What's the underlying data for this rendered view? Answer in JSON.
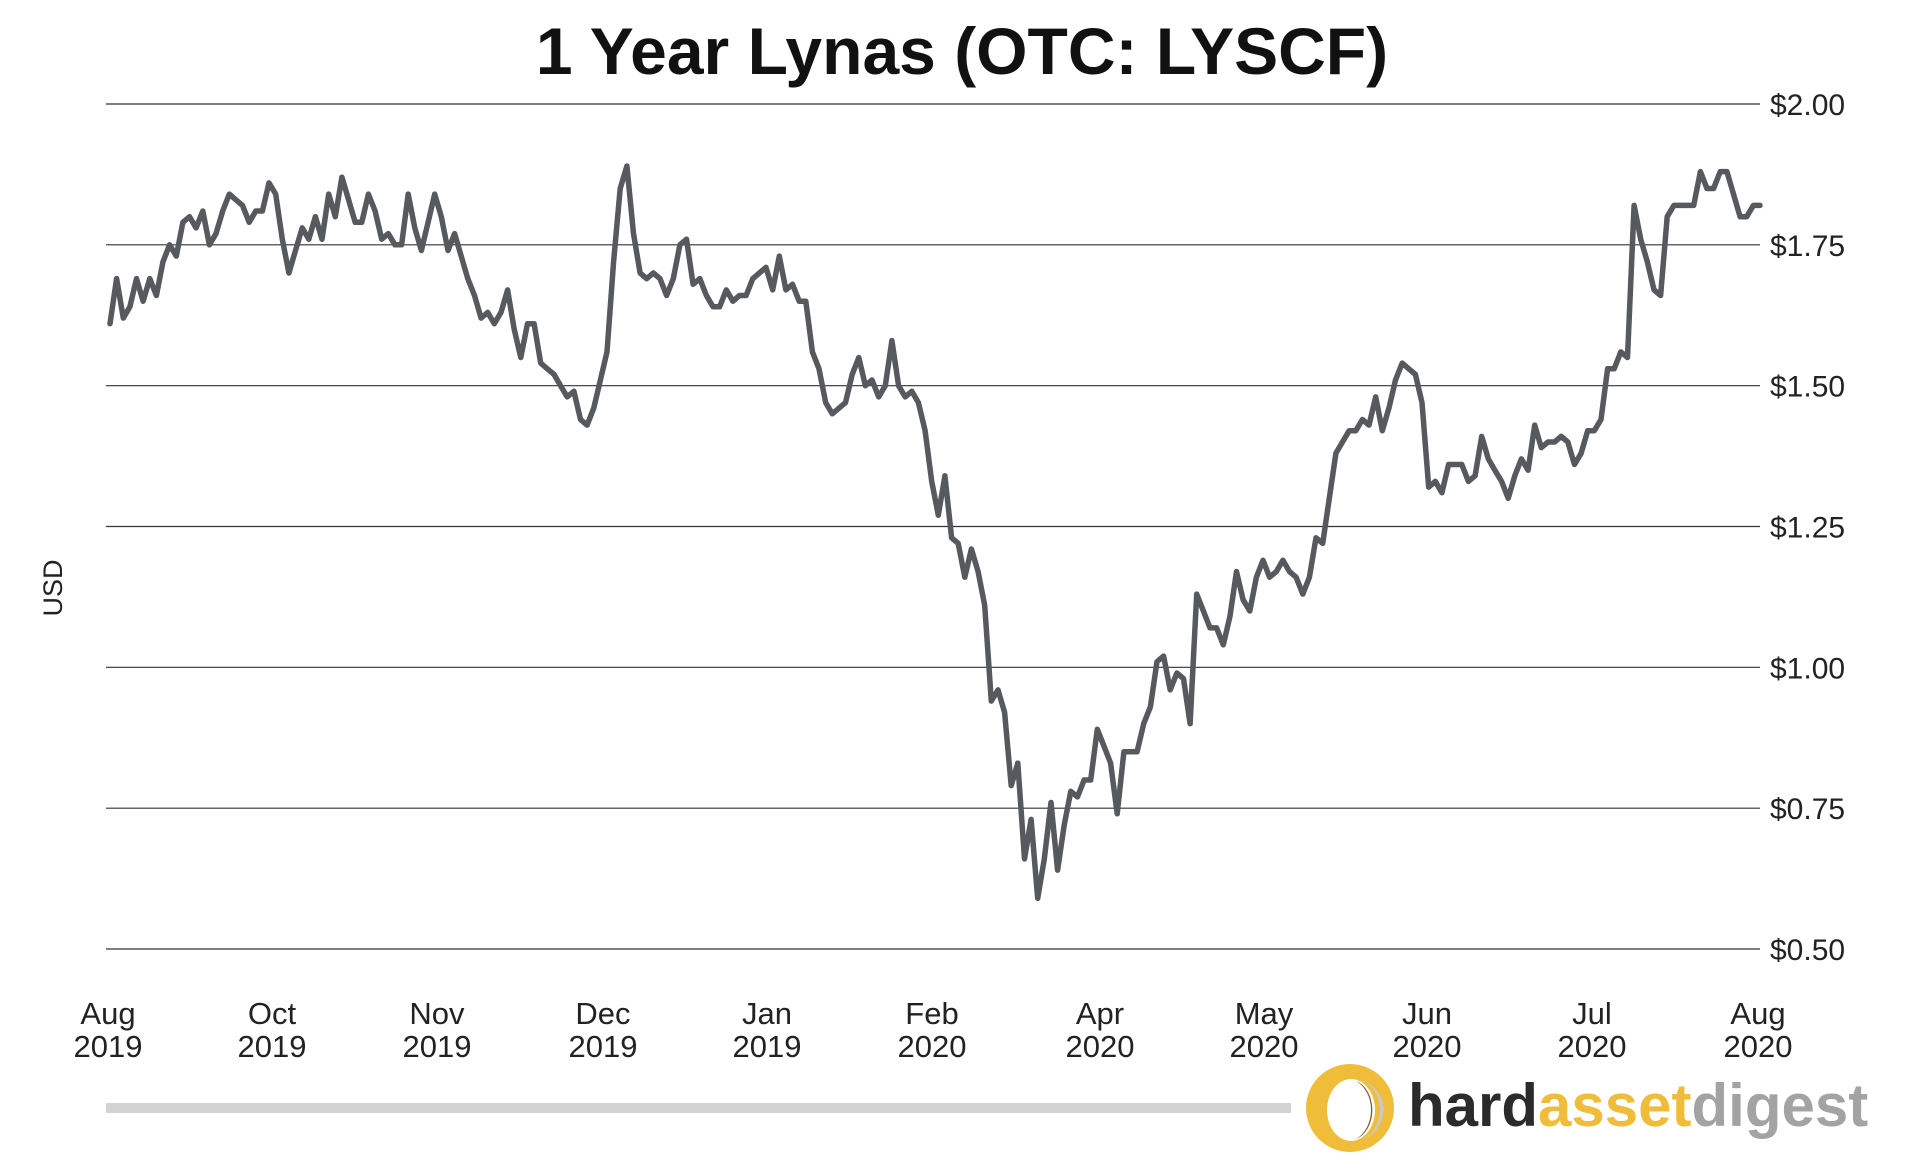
{
  "chart_data": {
    "type": "line",
    "title": "1 Year Lynas (OTC: LYSCF)",
    "ylabel": "USD",
    "xlabel": "",
    "ylim": [
      0.5,
      2.0
    ],
    "yticks": [
      0.5,
      0.75,
      1.0,
      1.25,
      1.5,
      1.75,
      2.0
    ],
    "ytick_labels": [
      "$0.50",
      "$0.75",
      "$1.00",
      "$1.25",
      "$1.50",
      "$1.75",
      "$2.00"
    ],
    "xtick_labels": [
      [
        "Aug",
        "2019"
      ],
      [
        "Oct",
        "2019"
      ],
      [
        "Nov",
        "2019"
      ],
      [
        "Dec",
        "2019"
      ],
      [
        "Jan",
        "2019"
      ],
      [
        "Feb",
        "2020"
      ],
      [
        "Apr",
        "2020"
      ],
      [
        "May",
        "2020"
      ],
      [
        "Jun",
        "2020"
      ],
      [
        "Jul",
        "2020"
      ],
      [
        "Aug",
        "2020"
      ]
    ],
    "grid": true,
    "series": [
      {
        "color": "#56595e",
        "values": [
          1.61,
          1.69,
          1.62,
          1.64,
          1.69,
          1.65,
          1.69,
          1.66,
          1.72,
          1.75,
          1.73,
          1.79,
          1.8,
          1.78,
          1.81,
          1.75,
          1.77,
          1.81,
          1.84,
          1.83,
          1.82,
          1.79,
          1.81,
          1.81,
          1.86,
          1.84,
          1.76,
          1.7,
          1.74,
          1.78,
          1.76,
          1.8,
          1.76,
          1.84,
          1.8,
          1.87,
          1.83,
          1.79,
          1.79,
          1.84,
          1.81,
          1.76,
          1.77,
          1.75,
          1.75,
          1.84,
          1.78,
          1.74,
          1.79,
          1.84,
          1.8,
          1.74,
          1.77,
          1.73,
          1.69,
          1.66,
          1.62,
          1.63,
          1.61,
          1.63,
          1.67,
          1.6,
          1.55,
          1.61,
          1.61,
          1.54,
          1.53,
          1.52,
          1.5,
          1.48,
          1.49,
          1.44,
          1.43,
          1.46,
          1.51,
          1.56,
          1.72,
          1.85,
          1.89,
          1.77,
          1.7,
          1.69,
          1.7,
          1.69,
          1.66,
          1.69,
          1.75,
          1.76,
          1.68,
          1.69,
          1.66,
          1.64,
          1.64,
          1.67,
          1.65,
          1.66,
          1.66,
          1.69,
          1.7,
          1.71,
          1.67,
          1.73,
          1.67,
          1.68,
          1.65,
          1.65,
          1.56,
          1.53,
          1.47,
          1.45,
          1.46,
          1.47,
          1.52,
          1.55,
          1.5,
          1.51,
          1.48,
          1.5,
          1.58,
          1.5,
          1.48,
          1.49,
          1.47,
          1.42,
          1.33,
          1.27,
          1.34,
          1.23,
          1.22,
          1.16,
          1.21,
          1.17,
          1.11,
          0.94,
          0.96,
          0.92,
          0.79,
          0.83,
          0.66,
          0.73,
          0.59,
          0.66,
          0.76,
          0.64,
          0.72,
          0.78,
          0.77,
          0.8,
          0.8,
          0.89,
          0.86,
          0.83,
          0.74,
          0.85,
          0.85,
          0.85,
          0.9,
          0.93,
          1.01,
          1.02,
          0.96,
          0.99,
          0.98,
          0.9,
          1.13,
          1.1,
          1.07,
          1.07,
          1.04,
          1.09,
          1.17,
          1.12,
          1.1,
          1.16,
          1.19,
          1.16,
          1.17,
          1.19,
          1.17,
          1.16,
          1.13,
          1.16,
          1.23,
          1.22,
          1.3,
          1.38,
          1.4,
          1.42,
          1.42,
          1.44,
          1.43,
          1.48,
          1.42,
          1.46,
          1.51,
          1.54,
          1.53,
          1.52,
          1.47,
          1.32,
          1.33,
          1.31,
          1.36,
          1.36,
          1.36,
          1.33,
          1.34,
          1.41,
          1.37,
          1.35,
          1.33,
          1.3,
          1.34,
          1.37,
          1.35,
          1.43,
          1.39,
          1.4,
          1.4,
          1.41,
          1.4,
          1.36,
          1.38,
          1.42,
          1.42,
          1.44,
          1.53,
          1.53,
          1.56,
          1.55,
          1.82,
          1.76,
          1.72,
          1.67,
          1.66,
          1.8,
          1.82,
          1.82,
          1.82,
          1.82,
          1.88,
          1.85,
          1.85,
          1.88,
          1.88,
          1.84,
          1.8,
          1.8,
          1.82,
          1.82
        ]
      }
    ]
  },
  "brand": {
    "word_1": "hard",
    "word_2": "asset",
    "word_3": "digest",
    "color_dark": "#2b2b2b",
    "color_gold": "#f0bd3a",
    "color_gray": "#a3a3a3"
  }
}
